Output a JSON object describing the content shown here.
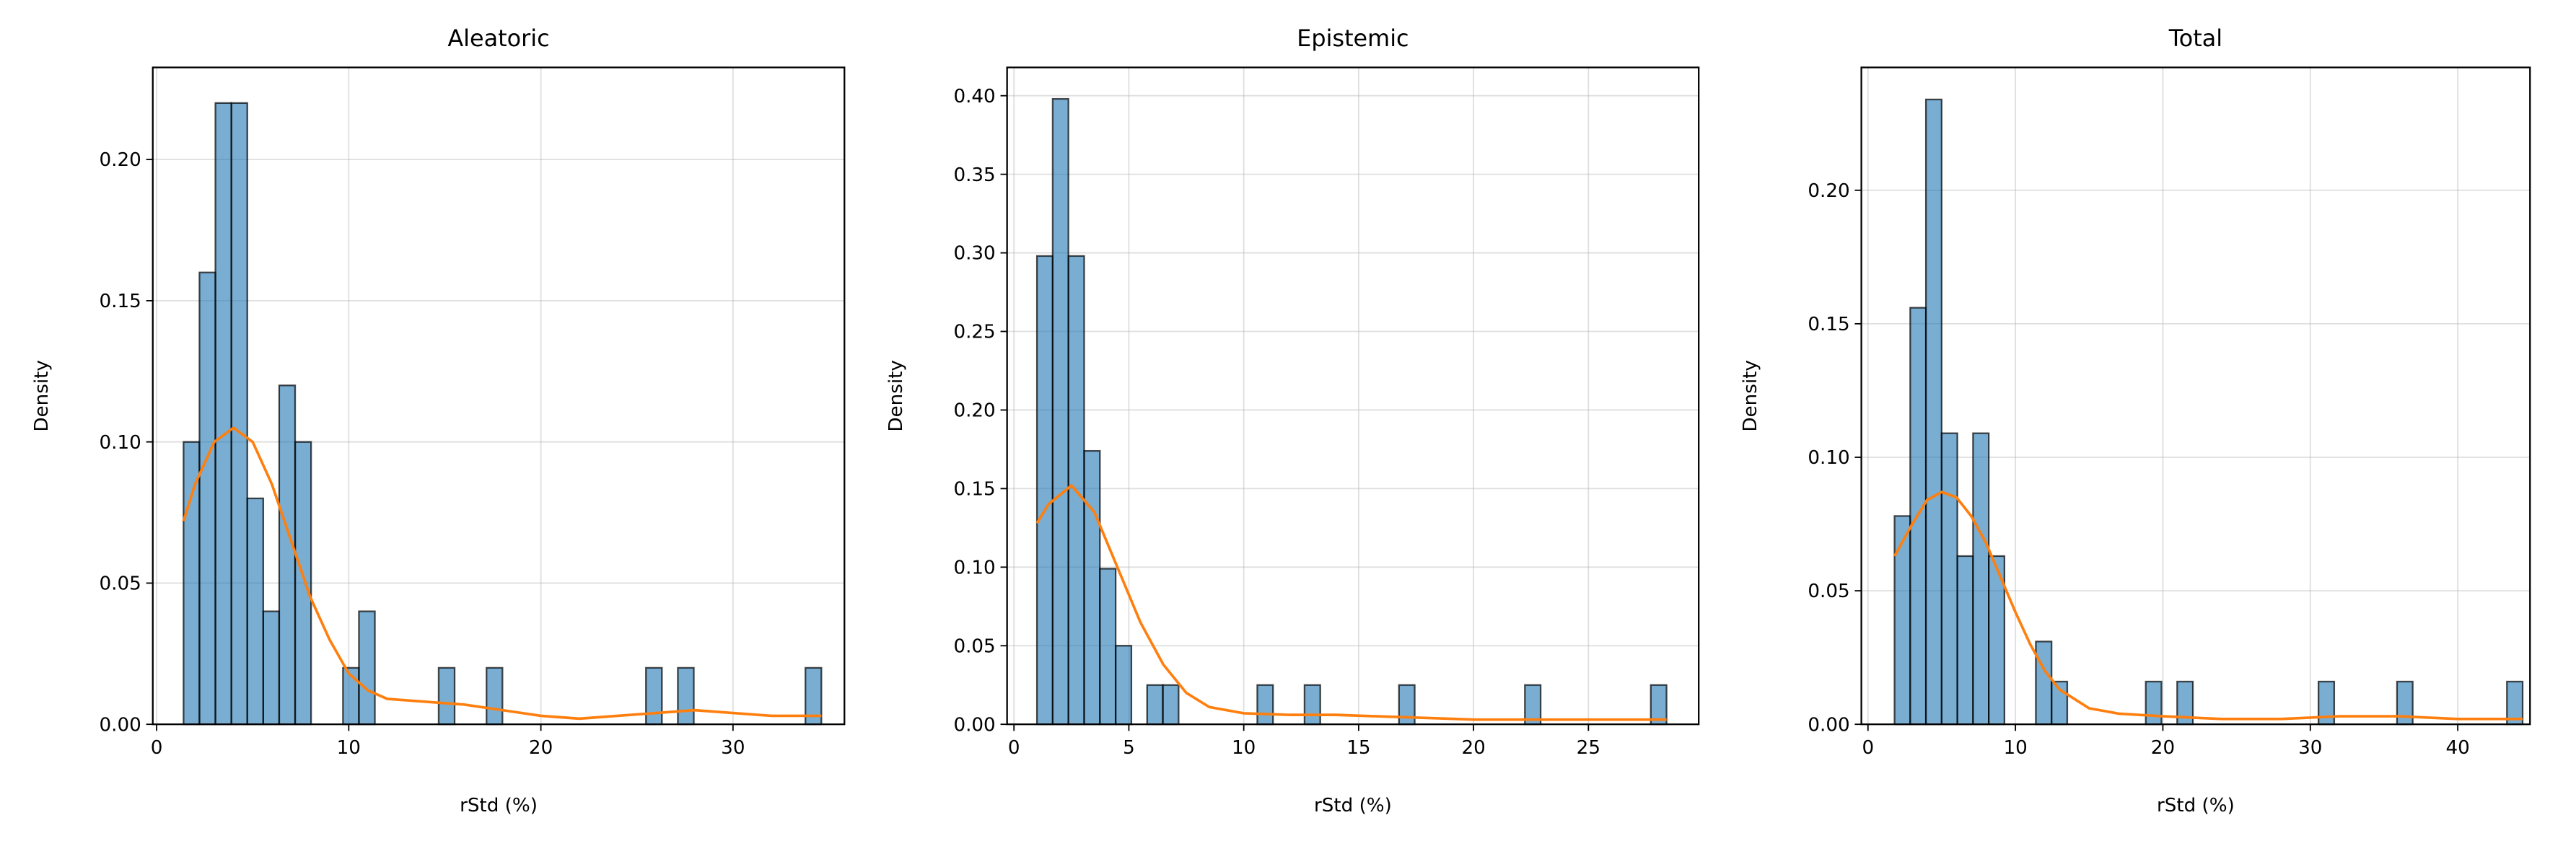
{
  "chart_data": [
    {
      "type": "histogram",
      "title": "Aleatoric",
      "xlabel": "rStd (%)",
      "ylabel": "Density",
      "bins": [
        1.4,
        2.23,
        3.06,
        3.89,
        4.72,
        5.55,
        6.38,
        7.21,
        8.04,
        8.87,
        9.7,
        10.53,
        11.36,
        12.19,
        13.02,
        13.85,
        14.68,
        15.51,
        16.34,
        17.17,
        18.0,
        18.83,
        19.66,
        20.49,
        21.32,
        22.15,
        22.98,
        23.81,
        24.64,
        25.47,
        26.3,
        27.13,
        27.96,
        28.79,
        29.62,
        30.45,
        31.28,
        32.11,
        32.94,
        33.77,
        34.6
      ],
      "values": [
        0.1,
        0.16,
        0.22,
        0.22,
        0.08,
        0.04,
        0.12,
        0.1,
        0,
        0,
        0.02,
        0.04,
        0,
        0,
        0,
        0,
        0.02,
        0,
        0,
        0.02,
        0,
        0,
        0,
        0,
        0,
        0,
        0,
        0,
        0,
        0.02,
        0,
        0.02,
        0,
        0,
        0,
        0,
        0,
        0,
        0,
        0.02
      ],
      "color": "#1f77b4",
      "kde": {
        "color": "#ff7f0e",
        "x": [
          1.4,
          2,
          3,
          4,
          5,
          6,
          7,
          8,
          9,
          10,
          11,
          12,
          14,
          16,
          18,
          20,
          22,
          24,
          26,
          28,
          30,
          32,
          34.6
        ],
        "y": [
          0.072,
          0.085,
          0.1,
          0.105,
          0.1,
          0.085,
          0.065,
          0.045,
          0.03,
          0.018,
          0.012,
          0.009,
          0.008,
          0.007,
          0.005,
          0.003,
          0.002,
          0.003,
          0.004,
          0.005,
          0.004,
          0.003,
          0.003
        ]
      },
      "xlim": [
        -0.2,
        35.8
      ],
      "xticks": [
        0,
        10,
        20,
        30
      ],
      "ylim": [
        0,
        0.2326
      ],
      "yticks": [
        {
          "value": 0,
          "label": "0.00"
        },
        {
          "value": 0.05,
          "label": "0.05"
        },
        {
          "value": 0.1,
          "label": "0.10"
        },
        {
          "value": 0.15,
          "label": "0.15"
        },
        {
          "value": 0.2,
          "label": "0.20"
        }
      ],
      "grid": true
    },
    {
      "type": "histogram",
      "title": "Epistemic",
      "xlabel": "rStd (%)",
      "ylabel": "Density",
      "bins": [
        1.0,
        1.685,
        2.37,
        3.055,
        3.74,
        4.425,
        5.11,
        5.795,
        6.48,
        7.165,
        7.85,
        8.535,
        9.22,
        9.905,
        10.59,
        11.275,
        11.96,
        12.645,
        13.33,
        14.015,
        14.7,
        15.385,
        16.07,
        16.755,
        17.44,
        18.125,
        18.81,
        19.495,
        20.18,
        20.865,
        21.55,
        22.235,
        22.92,
        23.605,
        24.29,
        24.975,
        25.66,
        26.345,
        27.03,
        27.715,
        28.4
      ],
      "values": [
        0.298,
        0.398,
        0.298,
        0.174,
        0.099,
        0.05,
        0,
        0.025,
        0.025,
        0,
        0,
        0,
        0,
        0,
        0.025,
        0,
        0,
        0.025,
        0,
        0,
        0,
        0,
        0,
        0.025,
        0,
        0,
        0,
        0,
        0,
        0,
        0,
        0.025,
        0,
        0,
        0,
        0,
        0,
        0,
        0,
        0.025
      ],
      "color": "#1f77b4",
      "kde": {
        "color": "#ff7f0e",
        "x": [
          1.0,
          1.5,
          2.5,
          3.5,
          4.5,
          5.5,
          6.5,
          7.5,
          8.5,
          10,
          12,
          14,
          16,
          18,
          20,
          22,
          24,
          26,
          28.4
        ],
        "y": [
          0.128,
          0.14,
          0.152,
          0.135,
          0.1,
          0.065,
          0.038,
          0.02,
          0.011,
          0.007,
          0.006,
          0.006,
          0.005,
          0.004,
          0.003,
          0.003,
          0.003,
          0.003,
          0.003
        ]
      },
      "xlim": [
        -0.3,
        29.8
      ],
      "xticks": [
        0,
        5,
        10,
        15,
        20,
        25
      ],
      "ylim": [
        0,
        0.418
      ],
      "yticks": [
        {
          "value": 0,
          "label": "0.00"
        },
        {
          "value": 0.05,
          "label": "0.05"
        },
        {
          "value": 0.1,
          "label": "0.10"
        },
        {
          "value": 0.15,
          "label": "0.15"
        },
        {
          "value": 0.2,
          "label": "0.20"
        },
        {
          "value": 0.25,
          "label": "0.25"
        },
        {
          "value": 0.3,
          "label": "0.30"
        },
        {
          "value": 0.35,
          "label": "0.35"
        },
        {
          "value": 0.4,
          "label": "0.40"
        }
      ],
      "grid": true
    },
    {
      "type": "histogram",
      "title": "Total",
      "xlabel": "rStd (%)",
      "ylabel": "Density",
      "bins": [
        1.8,
        2.865,
        3.93,
        4.995,
        6.06,
        7.125,
        8.19,
        9.255,
        10.32,
        11.385,
        12.45,
        13.515,
        14.58,
        15.645,
        16.71,
        17.775,
        18.84,
        19.905,
        20.97,
        22.035,
        23.1,
        24.165,
        25.23,
        26.295,
        27.36,
        28.425,
        29.49,
        30.555,
        31.62,
        32.685,
        33.75,
        34.815,
        35.88,
        36.945,
        38.01,
        39.075,
        40.14,
        41.205,
        42.27,
        43.335,
        44.4
      ],
      "values": [
        0.078,
        0.156,
        0.234,
        0.109,
        0.063,
        0.109,
        0.063,
        0,
        0,
        0.031,
        0.016,
        0,
        0,
        0,
        0,
        0,
        0.016,
        0,
        0.016,
        0,
        0,
        0,
        0,
        0,
        0,
        0,
        0,
        0.016,
        0,
        0,
        0,
        0,
        0.016,
        0,
        0,
        0,
        0,
        0,
        0,
        0.016
      ],
      "color": "#1f77b4",
      "kde": {
        "color": "#ff7f0e",
        "x": [
          1.8,
          3,
          4,
          5,
          6,
          7,
          8,
          9,
          10,
          11,
          12,
          13,
          15,
          17,
          20,
          24,
          28,
          32,
          36,
          40,
          44.4
        ],
        "y": [
          0.063,
          0.075,
          0.084,
          0.087,
          0.085,
          0.078,
          0.068,
          0.055,
          0.042,
          0.03,
          0.02,
          0.013,
          0.006,
          0.004,
          0.003,
          0.002,
          0.002,
          0.003,
          0.003,
          0.002,
          0.002
        ]
      },
      "xlim": [
        -0.45,
        44.9
      ],
      "xticks": [
        0,
        10,
        20,
        30,
        40
      ],
      "ylim": [
        0,
        0.246
      ],
      "yticks": [
        {
          "value": 0,
          "label": "0.00"
        },
        {
          "value": 0.05,
          "label": "0.05"
        },
        {
          "value": 0.1,
          "label": "0.10"
        },
        {
          "value": 0.15,
          "label": "0.15"
        },
        {
          "value": 0.2,
          "label": "0.20"
        }
      ],
      "grid": true
    }
  ]
}
